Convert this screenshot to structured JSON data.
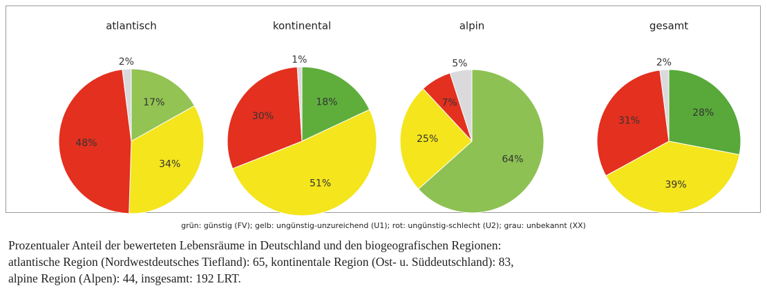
{
  "chart_data": [
    {
      "type": "pie",
      "title": "atlantisch",
      "values": [
        17,
        34,
        48,
        2
      ],
      "value_labels": [
        "17%",
        "34%",
        "48%",
        "2%"
      ],
      "colors": [
        "#92c353",
        "#f4e51d",
        "#e3301f",
        "#dadadd"
      ]
    },
    {
      "type": "pie",
      "title": "kontinental",
      "values": [
        18,
        51,
        30,
        1
      ],
      "value_labels": [
        "18%",
        "51%",
        "30%",
        "1%"
      ],
      "colors": [
        "#5fae3c",
        "#f4e51d",
        "#e3301f",
        "#dadadd"
      ]
    },
    {
      "type": "pie",
      "title": "alpin",
      "values": [
        64,
        25,
        7,
        5
      ],
      "value_labels": [
        "64%",
        "25%",
        "7%",
        "5%"
      ],
      "colors": [
        "#8dc153",
        "#f4e51d",
        "#e3301f",
        "#dadadd"
      ]
    },
    {
      "type": "pie",
      "title": "gesamt",
      "values": [
        28,
        39,
        31,
        2
      ],
      "value_labels": [
        "28%",
        "39%",
        "31%",
        "2%"
      ],
      "colors": [
        "#58a83a",
        "#f4e51d",
        "#e3301f",
        "#dadadd"
      ]
    }
  ],
  "note": "grün: günstig (FV); gelb: ungünstig-unzureichend (U1); rot: ungünstig-schlecht (U2); grau: unbekannt (XX)",
  "caption": [
    "Prozentualer Anteil der bewerteten Lebensräume in Deutschland und den biogeografischen Regionen:",
    "atlantische Region (Nordwestdeutsches Tiefland): 65, kontinentale Region (Ost- u. Süddeutschland): 83,",
    "alpine Region (Alpen): 44, insgesamt: 192 LRT."
  ]
}
